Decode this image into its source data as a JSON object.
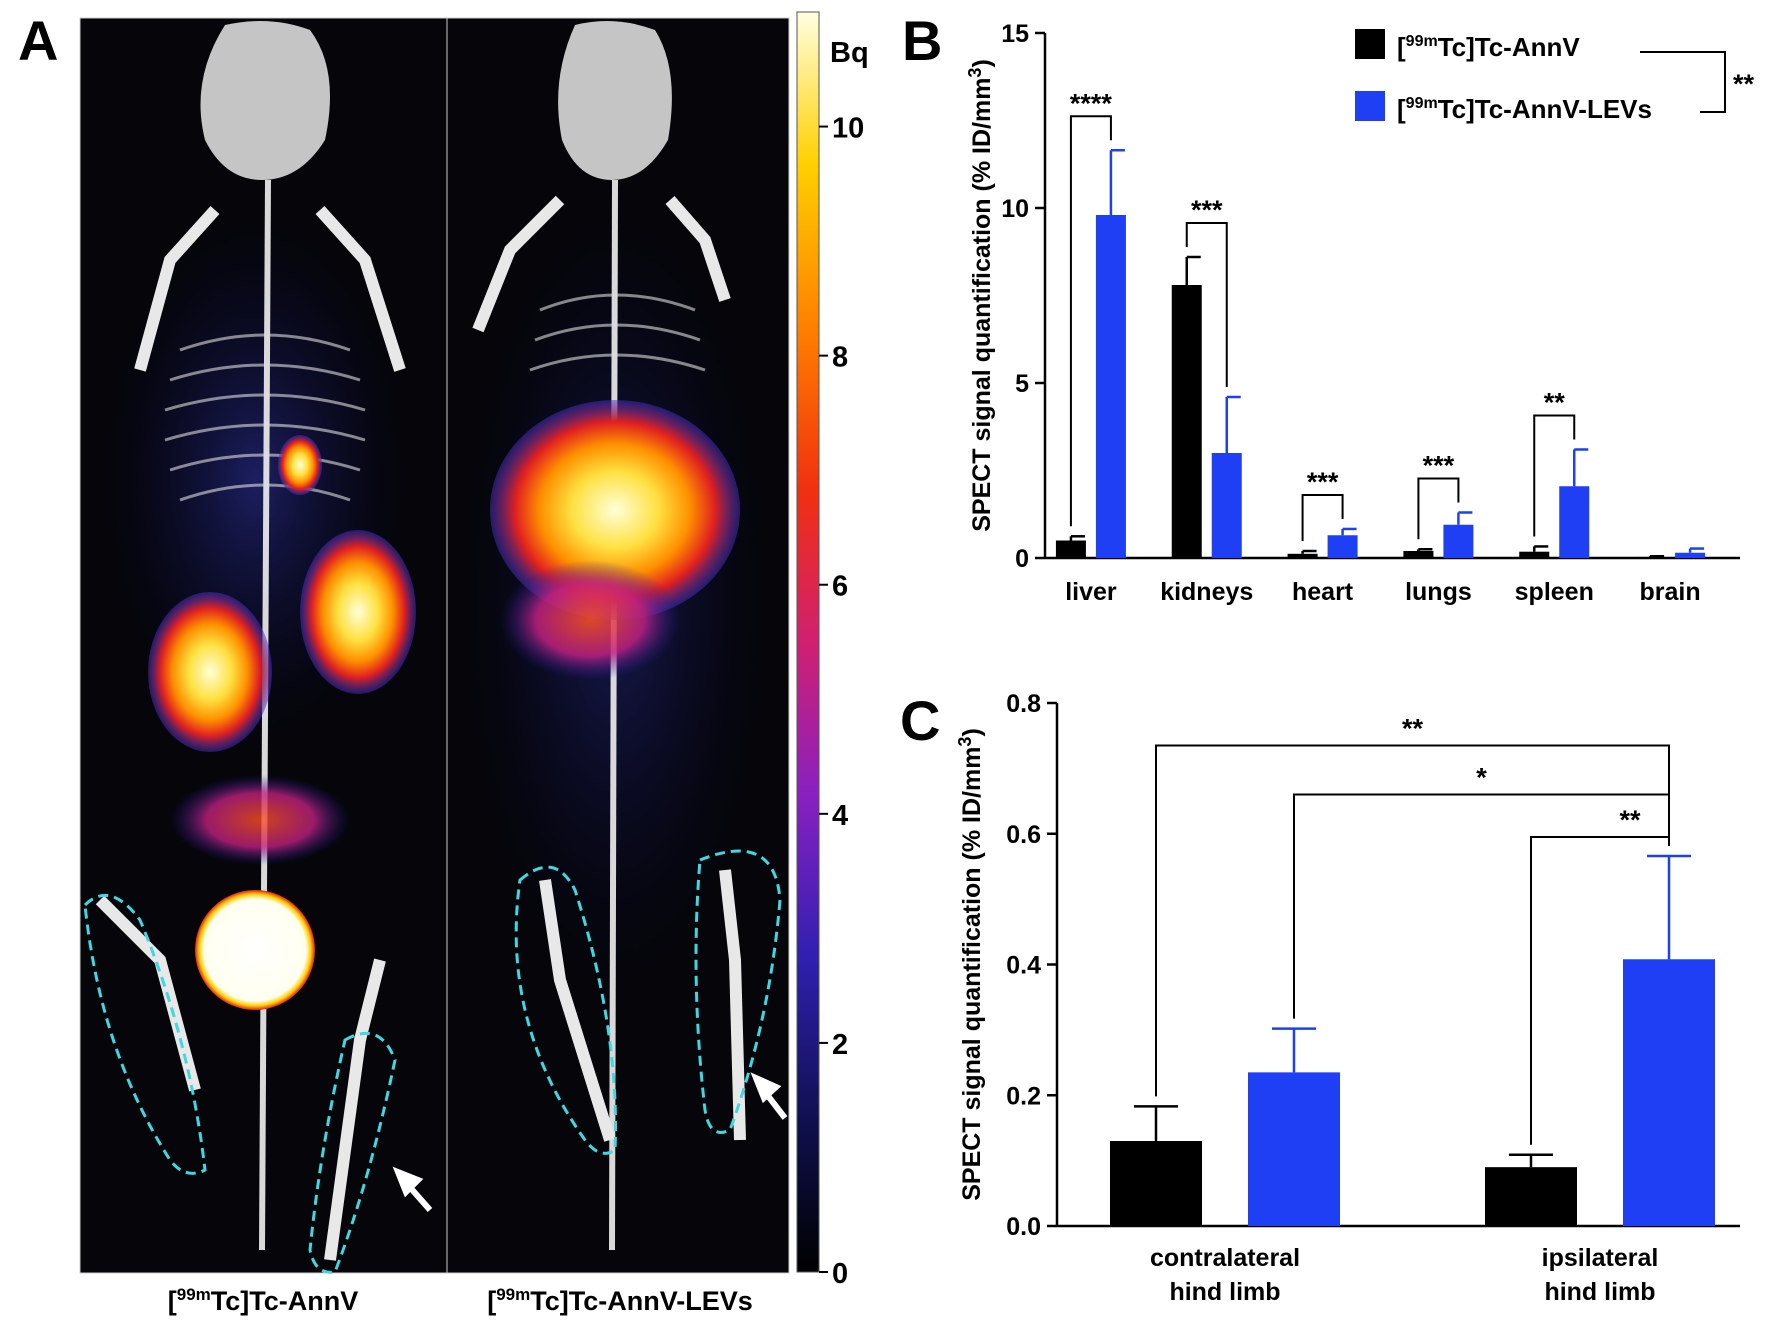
{
  "panels": {
    "a": {
      "letter": "A",
      "image_labels": [
        "[99mTc]Tc-AnnV",
        "[99mTc]Tc-AnnV-LEVs"
      ],
      "colorbar": {
        "unit": "Bq",
        "ticks": [
          0,
          2,
          4,
          6,
          8,
          10
        ],
        "range": [
          0,
          11
        ]
      }
    },
    "b": {
      "letter": "B"
    },
    "c": {
      "letter": "C"
    }
  },
  "colors": {
    "AnnV": "#000000",
    "AnnV-LEVs": "#1f3ff5",
    "roi": "#40d8e0"
  },
  "chart_data": [
    {
      "id": "B",
      "type": "bar",
      "title": "",
      "xlabel": "",
      "ylabel": "SPECT signal quantification (% ID/mm3)",
      "ylim": [
        0,
        15
      ],
      "yticks": [
        0,
        5,
        10,
        15
      ],
      "categories": [
        "liver",
        "kidneys",
        "heart",
        "lungs",
        "spleen",
        "brain"
      ],
      "series": [
        {
          "name": "[99mTc]Tc-AnnV",
          "color": "#000000",
          "values": [
            0.5,
            7.8,
            0.12,
            0.2,
            0.18,
            0.03
          ],
          "errors": [
            0.12,
            0.8,
            0.08,
            0.05,
            0.15,
            0.02
          ]
        },
        {
          "name": "[99mTc]Tc-AnnV-LEVs",
          "color": "#1f3ff5",
          "values": [
            9.8,
            3.0,
            0.65,
            0.95,
            2.05,
            0.15
          ],
          "errors": [
            1.85,
            1.6,
            0.18,
            0.35,
            1.05,
            0.12
          ]
        }
      ],
      "significance": [
        {
          "category": "liver",
          "label": "****"
        },
        {
          "category": "kidneys",
          "label": "***"
        },
        {
          "category": "heart",
          "label": "***"
        },
        {
          "category": "lungs",
          "label": "***"
        },
        {
          "category": "spleen",
          "label": "**"
        }
      ],
      "legend": {
        "placement": "top-right",
        "comparison_label": "**"
      }
    },
    {
      "id": "C",
      "type": "bar",
      "title": "",
      "xlabel": "",
      "ylabel": "SPECT signal quantification (% ID/mm3)",
      "ylim": [
        0,
        0.8
      ],
      "yticks": [
        "0.0",
        "0.2",
        "0.4",
        "0.6",
        "0.8"
      ],
      "categories": [
        [
          "contralateral",
          "hind limb"
        ],
        [
          "ipsilateral",
          "hind limb"
        ]
      ],
      "series": [
        {
          "name": "[99mTc]Tc-AnnV",
          "color": "#000000",
          "values": [
            0.13,
            0.09
          ],
          "errors": [
            0.053,
            0.019
          ]
        },
        {
          "name": "[99mTc]Tc-AnnV-LEVs",
          "color": "#1f3ff5",
          "values": [
            0.235,
            0.408
          ],
          "errors": [
            0.067,
            0.158
          ]
        }
      ],
      "significance": [
        {
          "from": "contralateral-AnnV",
          "to": "ipsilateral-AnnV-LEVs",
          "label": "**"
        },
        {
          "from": "contralateral-AnnV-LEVs",
          "to": "ipsilateral-AnnV-LEVs",
          "label": "*"
        },
        {
          "from": "ipsilateral-AnnV",
          "to": "ipsilateral-AnnV-LEVs",
          "label": "**"
        }
      ]
    }
  ]
}
